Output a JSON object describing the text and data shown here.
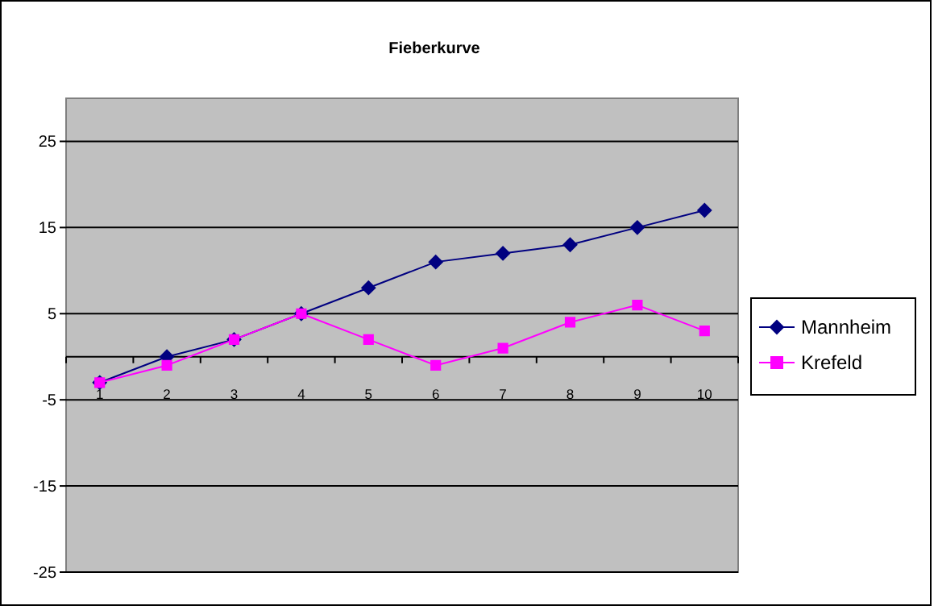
{
  "chart_data": {
    "type": "line",
    "title": "Fieberkurve",
    "categories": [
      "1",
      "2",
      "3",
      "4",
      "5",
      "6",
      "7",
      "8",
      "9",
      "10"
    ],
    "series": [
      {
        "name": "Mannheim",
        "color": "#000080",
        "marker": "diamond",
        "values": [
          -3,
          0,
          2,
          5,
          8,
          11,
          12,
          13,
          15,
          17
        ]
      },
      {
        "name": "Krefeld",
        "color": "#ff00ff",
        "marker": "square",
        "values": [
          -3,
          -1,
          2,
          5,
          2,
          -1,
          1,
          4,
          6,
          3
        ]
      }
    ],
    "ylim": [
      -25,
      30
    ],
    "yticks": [
      -25,
      -15,
      -5,
      5,
      15,
      25
    ],
    "grid": "y",
    "legend": "right"
  }
}
